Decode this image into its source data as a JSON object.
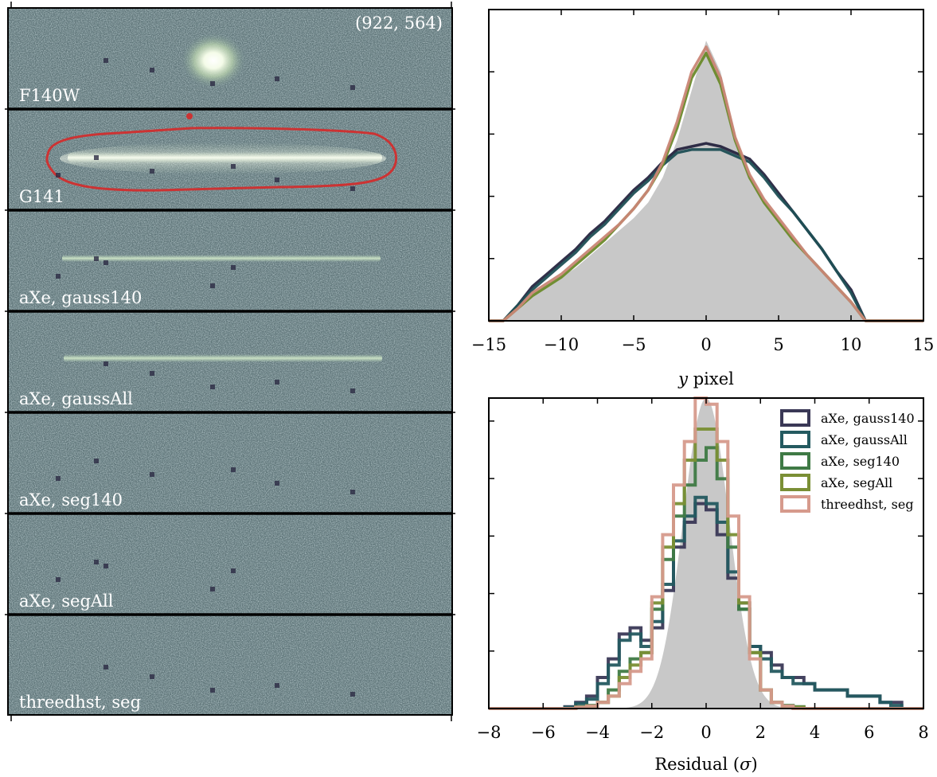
{
  "image_panel": {
    "coord_label": "(922, 564)",
    "strips": [
      {
        "label": "F140W"
      },
      {
        "label": "G141"
      },
      {
        "label": "aXe, gauss140"
      },
      {
        "label": "aXe, gaussAll"
      },
      {
        "label": "aXe, seg140"
      },
      {
        "label": "aXe, segAll"
      },
      {
        "label": "threedhst, seg"
      }
    ]
  },
  "colors": {
    "background_tone": "#5e7478",
    "contour": "#cc3333",
    "fill_gray": "#c8c8c8"
  },
  "chart_data": [
    {
      "type": "line",
      "title": "",
      "xlabel_italic": "y",
      "xlabel_rest": " pixel",
      "ylabel": "",
      "xlim": [
        -15,
        15
      ],
      "ylim": [
        0,
        1.0
      ],
      "x_ticks": [
        "−15",
        "−10",
        "−5",
        "0",
        "5",
        "10",
        "15"
      ],
      "x_tick_values": [
        -15,
        -10,
        -5,
        0,
        5,
        10,
        15
      ],
      "y_ticks_minor_count": 5,
      "x": [
        -15,
        -14,
        -13,
        -12,
        -11,
        -10,
        -9,
        -8,
        -7,
        -6,
        -5,
        -4,
        -3,
        -2,
        -1,
        0,
        1,
        2,
        3,
        4,
        5,
        6,
        7,
        8,
        9,
        10,
        11,
        12,
        13,
        14,
        15
      ],
      "fill": {
        "name": "profile",
        "values": [
          0,
          0,
          0.04,
          0.08,
          0.11,
          0.14,
          0.17,
          0.21,
          0.25,
          0.29,
          0.33,
          0.38,
          0.46,
          0.58,
          0.74,
          0.9,
          0.8,
          0.6,
          0.46,
          0.38,
          0.32,
          0.26,
          0.21,
          0.16,
          0.11,
          0.06,
          0,
          0,
          0,
          0,
          0
        ]
      },
      "series": [
        {
          "color": "#26243f",
          "values": [
            0,
            0,
            0.05,
            0.11,
            0.15,
            0.19,
            0.23,
            0.28,
            0.32,
            0.37,
            0.42,
            0.46,
            0.51,
            0.55,
            0.56,
            0.57,
            0.56,
            0.54,
            0.52,
            0.47,
            0.41,
            0.35,
            0.29,
            0.23,
            0.16,
            0.1,
            0,
            0,
            0,
            0,
            0
          ]
        },
        {
          "color": "#1f4f55",
          "values": [
            0,
            0,
            0.05,
            0.1,
            0.14,
            0.18,
            0.22,
            0.27,
            0.31,
            0.36,
            0.41,
            0.45,
            0.5,
            0.54,
            0.55,
            0.55,
            0.55,
            0.53,
            0.51,
            0.46,
            0.4,
            0.35,
            0.29,
            0.23,
            0.16,
            0.09,
            0,
            0,
            0,
            0,
            0
          ]
        },
        {
          "color": "#6a8a2a",
          "values": [
            0,
            0,
            0.04,
            0.08,
            0.11,
            0.14,
            0.18,
            0.22,
            0.26,
            0.31,
            0.36,
            0.42,
            0.5,
            0.62,
            0.78,
            0.86,
            0.76,
            0.58,
            0.46,
            0.38,
            0.32,
            0.26,
            0.21,
            0.16,
            0.11,
            0.06,
            0,
            0,
            0,
            0,
            0
          ]
        },
        {
          "color": "#c98676",
          "values": [
            0,
            0,
            0.04,
            0.09,
            0.12,
            0.15,
            0.19,
            0.23,
            0.27,
            0.31,
            0.36,
            0.42,
            0.51,
            0.64,
            0.8,
            0.88,
            0.78,
            0.59,
            0.47,
            0.39,
            0.33,
            0.27,
            0.21,
            0.16,
            0.11,
            0.06,
            0,
            0,
            0,
            0,
            0
          ]
        }
      ]
    },
    {
      "type": "histogram",
      "title": "",
      "xlabel": "Residual (",
      "xlabel_sigma": "σ",
      "xlabel_end": ")",
      "ylabel": "",
      "xlim": [
        -8,
        8
      ],
      "ylim": [
        0,
        0.5
      ],
      "x_ticks": [
        "−8",
        "−6",
        "−4",
        "−2",
        "0",
        "2",
        "4",
        "6",
        "8"
      ],
      "x_tick_values": [
        -8,
        -6,
        -4,
        -2,
        0,
        2,
        4,
        6,
        8
      ],
      "bin_edges": [
        -8.0,
        -7.6,
        -7.2,
        -6.8,
        -6.4,
        -6.0,
        -5.6,
        -5.2,
        -4.8,
        -4.4,
        -4.0,
        -3.6,
        -3.2,
        -2.8,
        -2.4,
        -2.0,
        -1.6,
        -1.2,
        -0.8,
        -0.4,
        0.0,
        0.4,
        0.8,
        1.2,
        1.6,
        2.0,
        2.4,
        2.8,
        3.2,
        3.6,
        4.0,
        4.4,
        4.8,
        5.2,
        5.6,
        6.0,
        6.4,
        6.8,
        7.2,
        7.6,
        8.0
      ],
      "gaussian_peak": 0.5,
      "gaussian_sigma": 0.85,
      "legend_position": "top-right",
      "series": [
        {
          "name": "aXe, gauss140",
          "color": "#3a3856",
          "values": [
            0,
            0,
            0,
            0,
            0,
            0,
            0,
            0.003,
            0.01,
            0.02,
            0.05,
            0.08,
            0.12,
            0.13,
            0.11,
            0.13,
            0.19,
            0.26,
            0.3,
            0.33,
            0.32,
            0.28,
            0.21,
            0.17,
            0.1,
            0.09,
            0.07,
            0.05,
            0.05,
            0.04,
            0.03,
            0.03,
            0.03,
            0.02,
            0.02,
            0.02,
            0.01,
            0.01,
            0,
            0
          ]
        },
        {
          "name": "aXe, gaussAll",
          "color": "#245a60",
          "values": [
            0,
            0,
            0,
            0,
            0,
            0,
            0,
            0.002,
            0.008,
            0.015,
            0.04,
            0.07,
            0.11,
            0.12,
            0.1,
            0.14,
            0.2,
            0.27,
            0.31,
            0.34,
            0.33,
            0.3,
            0.22,
            0.16,
            0.1,
            0.08,
            0.06,
            0.05,
            0.04,
            0.04,
            0.03,
            0.03,
            0.03,
            0.02,
            0.02,
            0.02,
            0.01,
            0.005,
            0,
            0
          ]
        },
        {
          "name": "aXe, seg140",
          "color": "#3f7a45",
          "values": [
            0,
            0,
            0,
            0,
            0,
            0,
            0,
            0,
            0.003,
            0.005,
            0.01,
            0.03,
            0.06,
            0.08,
            0.09,
            0.16,
            0.24,
            0.31,
            0.36,
            0.4,
            0.42,
            0.37,
            0.26,
            0.16,
            0.09,
            0.03,
            0.01,
            0.005,
            0.003,
            0,
            0,
            0,
            0,
            0,
            0,
            0,
            0,
            0,
            0,
            0
          ]
        },
        {
          "name": "aXe, segAll",
          "color": "#7a8f35",
          "values": [
            0,
            0,
            0,
            0,
            0,
            0,
            0,
            0,
            0.002,
            0.004,
            0.01,
            0.02,
            0.05,
            0.07,
            0.09,
            0.17,
            0.26,
            0.33,
            0.4,
            0.45,
            0.45,
            0.4,
            0.28,
            0.17,
            0.09,
            0.03,
            0.01,
            0.004,
            0.002,
            0,
            0,
            0,
            0,
            0,
            0,
            0,
            0,
            0,
            0,
            0
          ]
        },
        {
          "name": "threedhst, seg",
          "color": "#d69a8c",
          "values": [
            0,
            0,
            0,
            0,
            0,
            0,
            0,
            0,
            0.002,
            0.004,
            0.01,
            0.02,
            0.04,
            0.06,
            0.08,
            0.18,
            0.28,
            0.36,
            0.43,
            0.5,
            0.49,
            0.43,
            0.31,
            0.18,
            0.08,
            0.03,
            0.01,
            0.004,
            0,
            0,
            0,
            0,
            0,
            0,
            0,
            0,
            0,
            0,
            0,
            0
          ]
        }
      ]
    }
  ]
}
